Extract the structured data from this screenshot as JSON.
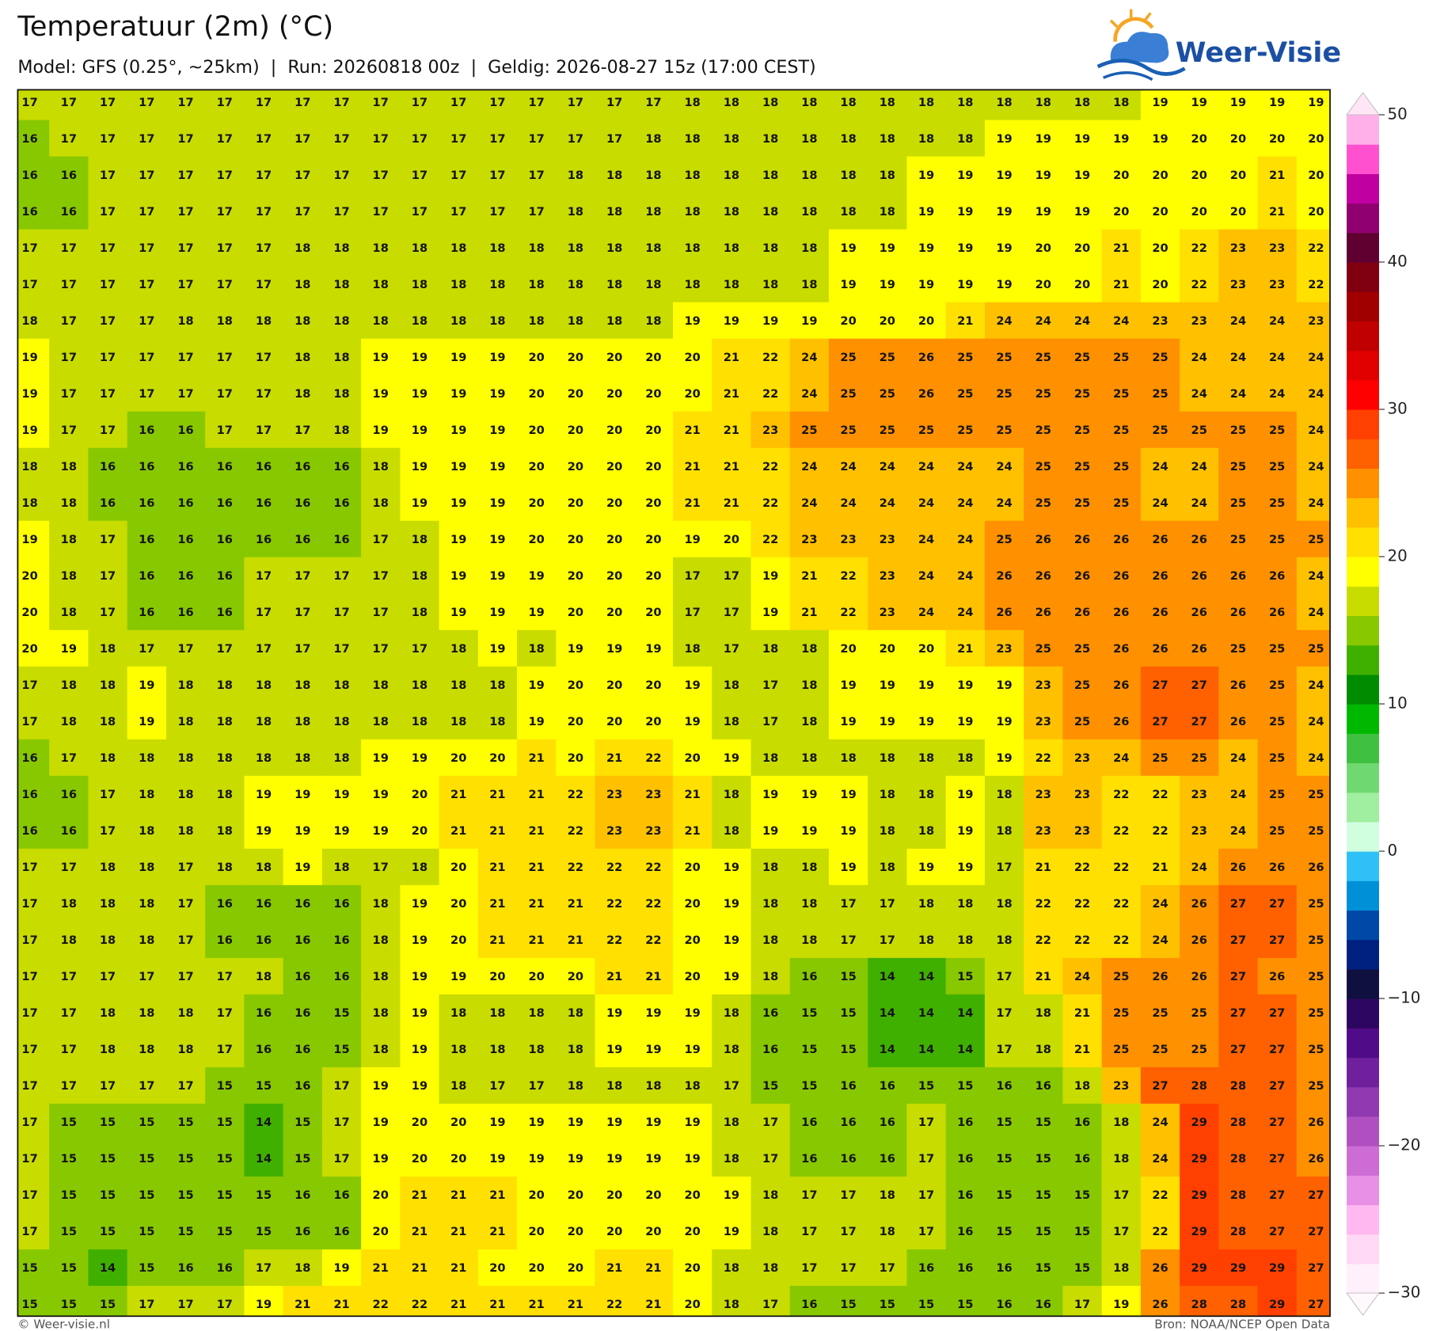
{
  "header": {
    "title": "Temperatuur (2m) (°C)",
    "subtitle": "Model: GFS (0.25°, ~25km)  |  Run: 20260818 00z  |  Geldig: 2026-08-27 15z (17:00 CEST)",
    "logo": "Weer-Visie"
  },
  "map": {
    "values": [
      [
        17,
        17,
        17,
        17,
        17,
        17,
        17,
        17,
        17,
        17,
        17,
        17,
        17,
        17,
        17,
        17,
        17,
        18,
        18,
        18,
        18,
        18,
        18,
        18,
        18,
        18,
        18,
        18,
        18,
        19,
        19,
        19,
        19,
        19
      ],
      [
        16,
        17,
        17,
        17,
        17,
        17,
        17,
        17,
        17,
        17,
        17,
        17,
        17,
        17,
        17,
        17,
        18,
        18,
        18,
        18,
        18,
        18,
        18,
        18,
        18,
        19,
        19,
        19,
        19,
        19,
        20,
        20,
        20,
        20
      ],
      [
        16,
        16,
        17,
        17,
        17,
        17,
        17,
        17,
        17,
        17,
        17,
        17,
        17,
        17,
        18,
        18,
        18,
        18,
        18,
        18,
        18,
        18,
        18,
        19,
        19,
        19,
        19,
        19,
        20,
        20,
        20,
        20,
        21,
        20
      ],
      [
        16,
        16,
        17,
        17,
        17,
        17,
        17,
        17,
        17,
        17,
        17,
        17,
        17,
        17,
        18,
        18,
        18,
        18,
        18,
        18,
        18,
        18,
        18,
        19,
        19,
        19,
        19,
        19,
        20,
        20,
        20,
        20,
        21,
        20
      ],
      [
        17,
        17,
        17,
        17,
        17,
        17,
        17,
        18,
        18,
        18,
        18,
        18,
        18,
        18,
        18,
        18,
        18,
        18,
        18,
        18,
        18,
        19,
        19,
        19,
        19,
        19,
        20,
        20,
        21,
        20,
        22,
        23,
        23,
        22
      ],
      [
        17,
        17,
        17,
        17,
        17,
        17,
        17,
        18,
        18,
        18,
        18,
        18,
        18,
        18,
        18,
        18,
        18,
        18,
        18,
        18,
        18,
        19,
        19,
        19,
        19,
        19,
        20,
        20,
        21,
        20,
        22,
        23,
        23,
        22
      ],
      [
        18,
        17,
        17,
        17,
        18,
        18,
        18,
        18,
        18,
        18,
        18,
        18,
        18,
        18,
        18,
        18,
        18,
        19,
        19,
        19,
        19,
        20,
        20,
        20,
        21,
        24,
        24,
        24,
        24,
        23,
        23,
        24,
        24,
        23
      ],
      [
        19,
        17,
        17,
        17,
        17,
        17,
        17,
        18,
        18,
        19,
        19,
        19,
        19,
        20,
        20,
        20,
        20,
        20,
        21,
        22,
        24,
        25,
        25,
        26,
        25,
        25,
        25,
        25,
        25,
        25,
        24,
        24,
        24,
        24
      ],
      [
        19,
        17,
        17,
        17,
        17,
        17,
        17,
        18,
        18,
        19,
        19,
        19,
        19,
        20,
        20,
        20,
        20,
        20,
        21,
        22,
        24,
        25,
        25,
        26,
        25,
        25,
        25,
        25,
        25,
        25,
        24,
        24,
        24,
        24
      ],
      [
        19,
        17,
        17,
        16,
        16,
        17,
        17,
        17,
        18,
        19,
        19,
        19,
        19,
        20,
        20,
        20,
        20,
        21,
        21,
        23,
        25,
        25,
        25,
        25,
        25,
        25,
        25,
        25,
        25,
        25,
        25,
        25,
        25,
        24
      ],
      [
        18,
        18,
        16,
        16,
        16,
        16,
        16,
        16,
        16,
        18,
        19,
        19,
        19,
        20,
        20,
        20,
        20,
        21,
        21,
        22,
        24,
        24,
        24,
        24,
        24,
        24,
        25,
        25,
        25,
        24,
        24,
        25,
        25,
        24
      ],
      [
        18,
        18,
        16,
        16,
        16,
        16,
        16,
        16,
        16,
        18,
        19,
        19,
        19,
        20,
        20,
        20,
        20,
        21,
        21,
        22,
        24,
        24,
        24,
        24,
        24,
        24,
        25,
        25,
        25,
        24,
        24,
        25,
        25,
        24
      ],
      [
        19,
        18,
        17,
        16,
        16,
        16,
        16,
        16,
        16,
        17,
        18,
        19,
        19,
        20,
        20,
        20,
        20,
        19,
        20,
        22,
        23,
        23,
        23,
        24,
        24,
        25,
        26,
        26,
        26,
        26,
        26,
        25,
        25,
        25
      ],
      [
        20,
        18,
        17,
        16,
        16,
        16,
        17,
        17,
        17,
        17,
        18,
        19,
        19,
        19,
        20,
        20,
        20,
        17,
        17,
        19,
        21,
        22,
        23,
        24,
        24,
        26,
        26,
        26,
        26,
        26,
        26,
        26,
        26,
        24
      ],
      [
        20,
        18,
        17,
        16,
        16,
        16,
        17,
        17,
        17,
        17,
        18,
        19,
        19,
        19,
        20,
        20,
        20,
        17,
        17,
        19,
        21,
        22,
        23,
        24,
        24,
        26,
        26,
        26,
        26,
        26,
        26,
        26,
        26,
        24
      ],
      [
        20,
        19,
        18,
        17,
        17,
        17,
        17,
        17,
        17,
        17,
        17,
        18,
        19,
        18,
        19,
        19,
        19,
        18,
        17,
        18,
        18,
        20,
        20,
        20,
        21,
        23,
        25,
        25,
        26,
        26,
        26,
        25,
        25,
        25
      ],
      [
        17,
        18,
        18,
        19,
        18,
        18,
        18,
        18,
        18,
        18,
        18,
        18,
        18,
        19,
        20,
        20,
        20,
        19,
        18,
        17,
        18,
        19,
        19,
        19,
        19,
        19,
        23,
        25,
        26,
        27,
        27,
        26,
        25,
        24
      ],
      [
        17,
        18,
        18,
        19,
        18,
        18,
        18,
        18,
        18,
        18,
        18,
        18,
        18,
        19,
        20,
        20,
        20,
        19,
        18,
        17,
        18,
        19,
        19,
        19,
        19,
        19,
        23,
        25,
        26,
        27,
        27,
        26,
        25,
        24
      ],
      [
        16,
        17,
        18,
        18,
        18,
        18,
        18,
        18,
        18,
        19,
        19,
        20,
        20,
        21,
        20,
        21,
        22,
        20,
        19,
        18,
        18,
        18,
        18,
        18,
        18,
        19,
        22,
        23,
        24,
        25,
        25,
        24,
        25,
        24
      ],
      [
        16,
        16,
        17,
        18,
        18,
        18,
        19,
        19,
        19,
        19,
        20,
        21,
        21,
        21,
        22,
        23,
        23,
        21,
        18,
        19,
        19,
        19,
        18,
        18,
        19,
        18,
        23,
        23,
        22,
        22,
        23,
        24,
        25,
        25
      ],
      [
        16,
        16,
        17,
        18,
        18,
        18,
        19,
        19,
        19,
        19,
        20,
        21,
        21,
        21,
        22,
        23,
        23,
        21,
        18,
        19,
        19,
        19,
        18,
        18,
        19,
        18,
        23,
        23,
        22,
        22,
        23,
        24,
        25,
        25
      ],
      [
        17,
        17,
        18,
        18,
        17,
        18,
        18,
        19,
        18,
        17,
        18,
        20,
        21,
        21,
        22,
        22,
        22,
        20,
        19,
        18,
        18,
        19,
        18,
        19,
        19,
        17,
        21,
        22,
        22,
        21,
        24,
        26,
        26,
        26
      ],
      [
        17,
        18,
        18,
        18,
        17,
        16,
        16,
        16,
        16,
        18,
        19,
        20,
        21,
        21,
        21,
        22,
        22,
        20,
        19,
        18,
        18,
        17,
        17,
        18,
        18,
        18,
        22,
        22,
        22,
        24,
        26,
        27,
        27,
        25
      ],
      [
        17,
        18,
        18,
        18,
        17,
        16,
        16,
        16,
        16,
        18,
        19,
        20,
        21,
        21,
        21,
        22,
        22,
        20,
        19,
        18,
        18,
        17,
        17,
        18,
        18,
        18,
        22,
        22,
        22,
        24,
        26,
        27,
        27,
        25
      ],
      [
        17,
        17,
        17,
        17,
        17,
        17,
        18,
        16,
        16,
        18,
        19,
        19,
        20,
        20,
        20,
        21,
        21,
        20,
        19,
        18,
        16,
        15,
        14,
        14,
        15,
        17,
        21,
        24,
        25,
        26,
        26,
        27,
        26,
        25
      ],
      [
        17,
        17,
        18,
        18,
        18,
        17,
        16,
        16,
        15,
        18,
        19,
        18,
        18,
        18,
        18,
        19,
        19,
        19,
        18,
        16,
        15,
        15,
        14,
        14,
        14,
        17,
        18,
        21,
        25,
        25,
        25,
        27,
        27,
        25
      ],
      [
        17,
        17,
        18,
        18,
        18,
        17,
        16,
        16,
        15,
        18,
        19,
        18,
        18,
        18,
        18,
        19,
        19,
        19,
        18,
        16,
        15,
        15,
        14,
        14,
        14,
        17,
        18,
        21,
        25,
        25,
        25,
        27,
        27,
        25
      ],
      [
        17,
        17,
        17,
        17,
        17,
        15,
        15,
        16,
        17,
        19,
        19,
        18,
        17,
        17,
        18,
        18,
        18,
        18,
        17,
        15,
        15,
        16,
        16,
        15,
        15,
        16,
        16,
        18,
        23,
        27,
        28,
        28,
        27,
        25
      ],
      [
        17,
        15,
        15,
        15,
        15,
        15,
        14,
        15,
        17,
        19,
        20,
        20,
        19,
        19,
        19,
        19,
        19,
        19,
        18,
        17,
        16,
        16,
        16,
        17,
        16,
        15,
        15,
        16,
        18,
        24,
        29,
        28,
        27,
        26
      ],
      [
        17,
        15,
        15,
        15,
        15,
        15,
        14,
        15,
        17,
        19,
        20,
        20,
        19,
        19,
        19,
        19,
        19,
        19,
        18,
        17,
        16,
        16,
        16,
        17,
        16,
        15,
        15,
        16,
        18,
        24,
        29,
        28,
        27,
        26
      ],
      [
        17,
        15,
        15,
        15,
        15,
        15,
        15,
        16,
        16,
        20,
        21,
        21,
        21,
        20,
        20,
        20,
        20,
        20,
        19,
        18,
        17,
        17,
        18,
        17,
        16,
        15,
        15,
        15,
        17,
        22,
        29,
        28,
        27,
        27
      ],
      [
        17,
        15,
        15,
        15,
        15,
        15,
        15,
        16,
        16,
        20,
        21,
        21,
        21,
        20,
        20,
        20,
        20,
        20,
        19,
        18,
        17,
        17,
        18,
        17,
        16,
        15,
        15,
        15,
        17,
        22,
        29,
        28,
        27,
        27
      ],
      [
        15,
        15,
        14,
        15,
        16,
        16,
        17,
        18,
        19,
        21,
        21,
        21,
        20,
        20,
        20,
        21,
        21,
        20,
        18,
        18,
        17,
        17,
        17,
        16,
        16,
        16,
        15,
        15,
        18,
        26,
        29,
        29,
        29,
        27
      ],
      [
        15,
        15,
        15,
        17,
        17,
        17,
        19,
        21,
        21,
        22,
        22,
        21,
        21,
        21,
        21,
        22,
        21,
        20,
        18,
        17,
        16,
        15,
        15,
        15,
        15,
        16,
        16,
        17,
        19,
        26,
        28,
        28,
        29,
        27
      ]
    ]
  },
  "colorbar": {
    "ylim": [
      -30,
      50
    ],
    "ticks": [
      50,
      40,
      30,
      20,
      10,
      0,
      {
        "value": -10,
        "label": "−10"
      },
      {
        "value": -20,
        "label": "−20"
      },
      {
        "value": -30,
        "label": "−30"
      }
    ],
    "colors": [
      "#fff0fb",
      "#ffd8f6",
      "#ffb8f0",
      "#e890e6",
      "#cc6cd4",
      "#b050c0",
      "#9038b0",
      "#70209c",
      "#500c88",
      "#2c0660",
      "#101040",
      "#002080",
      "#0048a8",
      "#0090d8",
      "#30c0f8",
      "#d0ffe0",
      "#a0eea0",
      "#70d870",
      "#40c040",
      "#00b800",
      "#008c00",
      "#40b000",
      "#88c800",
      "#c8dc00",
      "#ffff00",
      "#ffe000",
      "#ffc000",
      "#ff9000",
      "#ff6000",
      "#ff4000",
      "#ff0000",
      "#e00000",
      "#c00000",
      "#a00000",
      "#800010",
      "#600030",
      "#900070",
      "#c000a0",
      "#ff50d0",
      "#ffb0e8"
    ],
    "over_color": "#ffe6f6",
    "under_color": "#fff8fd"
  },
  "footer": {
    "left": "© Weer-visie.nl",
    "right": "Bron: NOAA/NCEP Open Data"
  }
}
